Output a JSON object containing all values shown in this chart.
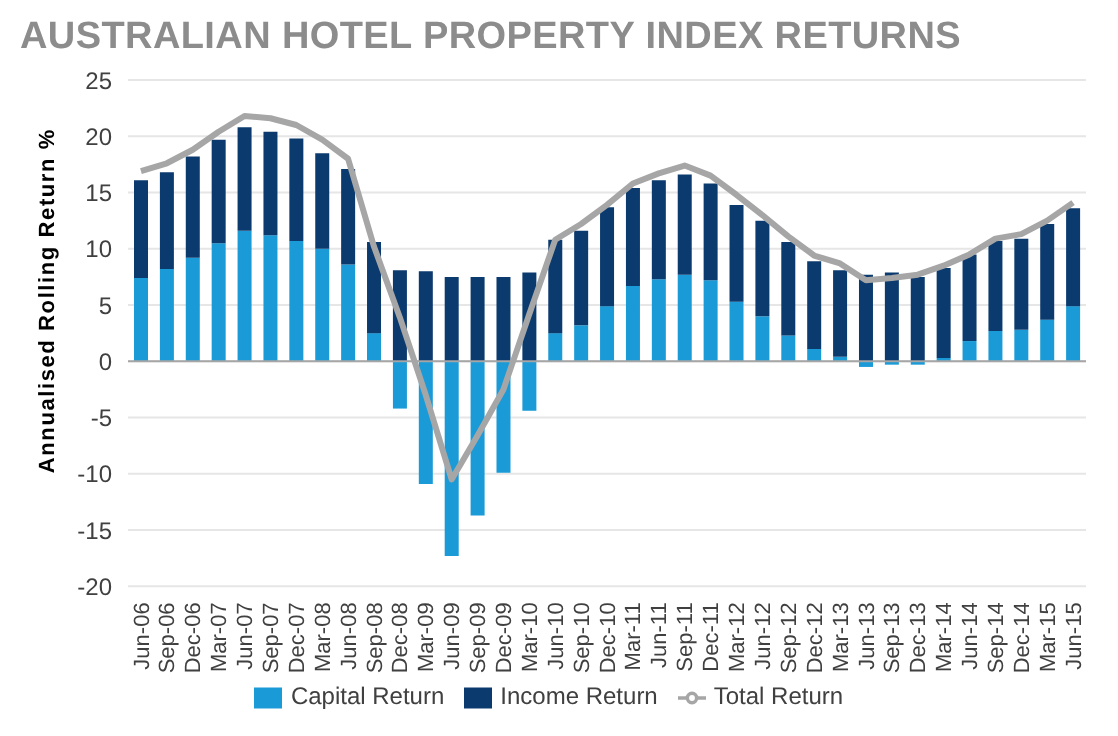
{
  "chart_data": {
    "type": "bar",
    "title": "AUSTRALIAN HOTEL PROPERTY INDEX RETURNS",
    "ylabel": "Annualised Rolling Return %",
    "categories": [
      "Jun-06",
      "Sep-06",
      "Dec-06",
      "Mar-07",
      "Jun-07",
      "Sep-07",
      "Dec-07",
      "Mar-08",
      "Jun-08",
      "Sep-08",
      "Dec-08",
      "Mar-09",
      "Jun-09",
      "Sep-09",
      "Dec-09",
      "Mar-10",
      "Jun-10",
      "Sep-10",
      "Dec-10",
      "Mar-11",
      "Jun-11",
      "Sep-11",
      "Dec-11",
      "Mar-12",
      "Jun-12",
      "Sep-12",
      "Dec-12",
      "Mar-13",
      "Jun-13",
      "Sep-13",
      "Dec-13",
      "Mar-14",
      "Jun-14",
      "Sep-14",
      "Dec-14",
      "Mar-15",
      "Jun-15"
    ],
    "series": [
      {
        "name": "Capital Return",
        "color": "#1a9ad6",
        "values": [
          7.4,
          8.2,
          9.2,
          10.5,
          11.6,
          11.2,
          10.7,
          10.0,
          8.6,
          2.5,
          -4.2,
          -10.9,
          -17.3,
          -13.7,
          -9.9,
          -4.4,
          2.5,
          3.2,
          4.9,
          6.7,
          7.3,
          7.7,
          7.2,
          5.3,
          4.0,
          2.3,
          1.1,
          0.4,
          -0.5,
          -0.3,
          -0.3,
          0.3,
          1.8,
          2.7,
          2.8,
          3.7,
          4.9
        ]
      },
      {
        "name": "Income Return",
        "color": "#0b3a6e",
        "values": [
          8.7,
          8.6,
          9.0,
          9.2,
          9.2,
          9.2,
          9.1,
          8.5,
          8.5,
          8.1,
          8.1,
          8.0,
          7.5,
          7.5,
          7.5,
          7.9,
          8.3,
          8.4,
          8.8,
          8.7,
          8.8,
          8.9,
          8.6,
          8.6,
          8.5,
          8.3,
          7.8,
          7.7,
          7.7,
          7.9,
          7.5,
          8.0,
          7.7,
          8.0,
          8.1,
          8.5,
          8.7
        ]
      },
      {
        "name": "Total Return",
        "type": "line",
        "color": "#a6a6a6",
        "values": [
          16.9,
          17.6,
          18.8,
          20.4,
          21.8,
          21.6,
          21.0,
          19.7,
          18.0,
          10.2,
          3.9,
          -3.0,
          -10.5,
          -6.6,
          -2.5,
          4.2,
          10.8,
          12.2,
          13.9,
          15.8,
          16.7,
          17.4,
          16.5,
          14.8,
          13.0,
          11.1,
          9.4,
          8.7,
          7.2,
          7.4,
          7.7,
          8.5,
          9.5,
          10.9,
          11.3,
          12.5,
          14.1
        ]
      }
    ],
    "stacked": true,
    "ylim": [
      -20,
      25
    ],
    "yticks": [
      -20,
      -15,
      -10,
      -5,
      0,
      5,
      10,
      15,
      20,
      25
    ],
    "grid": "y",
    "legend": "bottom",
    "marker": "none"
  }
}
